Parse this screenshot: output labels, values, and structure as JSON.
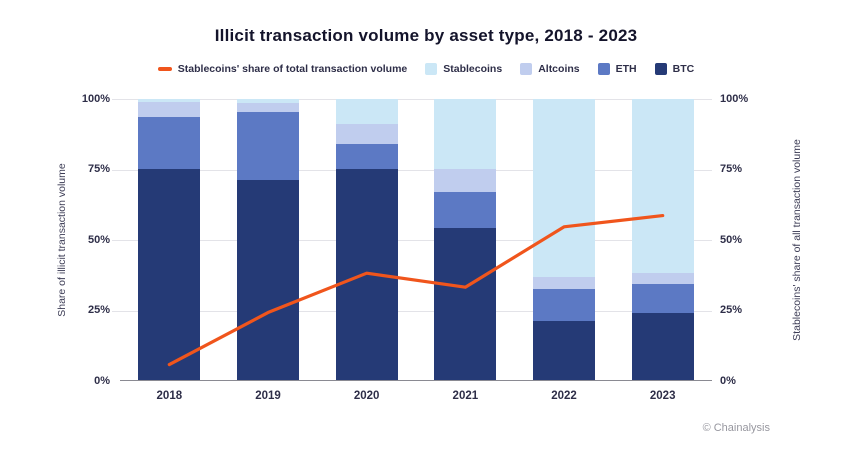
{
  "title": "Illicit transaction volume by asset type, 2018 - 2023",
  "legend": {
    "line_label": "Stablecoins' share of total transaction volume",
    "series_labels": [
      "Stablecoins",
      "Altcoins",
      "ETH",
      "BTC"
    ]
  },
  "axes": {
    "left_title": "Share of illicit transaction volume",
    "right_title": "Stablecoins' share of all transaction volume",
    "left_ticks": [
      "0%",
      "25%",
      "50%",
      "75%",
      "100%"
    ],
    "right_ticks": [
      "0%",
      "25%",
      "50%",
      "75%",
      "100%"
    ],
    "tick_values": [
      0,
      25,
      50,
      75,
      100
    ]
  },
  "credit": "© Chainalysis",
  "colors": {
    "btc": "#253a76",
    "eth": "#5c79c4",
    "altcoins": "#c0cdee",
    "stablecoins": "#cbe7f6",
    "line": "#f0551c",
    "grid": "#e3e3e8",
    "axis_line": "#8a8a92",
    "text_dark": "#2e2e48",
    "credit_gray": "#97979f"
  },
  "chart_data": {
    "type": "bar",
    "stacked": true,
    "title": "Illicit transaction volume by asset type, 2018 - 2023",
    "categories": [
      "2018",
      "2019",
      "2020",
      "2021",
      "2022",
      "2023"
    ],
    "series": [
      {
        "name": "BTC",
        "color": "#253a76",
        "values": [
          75,
          71,
          75,
          54,
          21,
          24
        ]
      },
      {
        "name": "ETH",
        "color": "#5c79c4",
        "values": [
          18.5,
          24.5,
          9,
          13,
          11.5,
          10
        ]
      },
      {
        "name": "Altcoins",
        "color": "#c0cdee",
        "values": [
          5.5,
          3,
          7,
          8,
          4,
          4
        ]
      },
      {
        "name": "Stablecoins",
        "color": "#cbe7f6",
        "values": [
          1,
          1.5,
          9,
          25,
          63.5,
          62
        ]
      }
    ],
    "line": {
      "name": "Stablecoins' share of total transaction volume",
      "color": "#f0551c",
      "values": [
        5.5,
        24,
        38,
        33,
        54.5,
        58.5
      ]
    },
    "ylabel_left": "Share of illicit transaction volume",
    "ylabel_right": "Stablecoins' share of all transaction volume",
    "ylim": [
      0,
      100
    ],
    "grid": true,
    "legend_position": "top"
  }
}
